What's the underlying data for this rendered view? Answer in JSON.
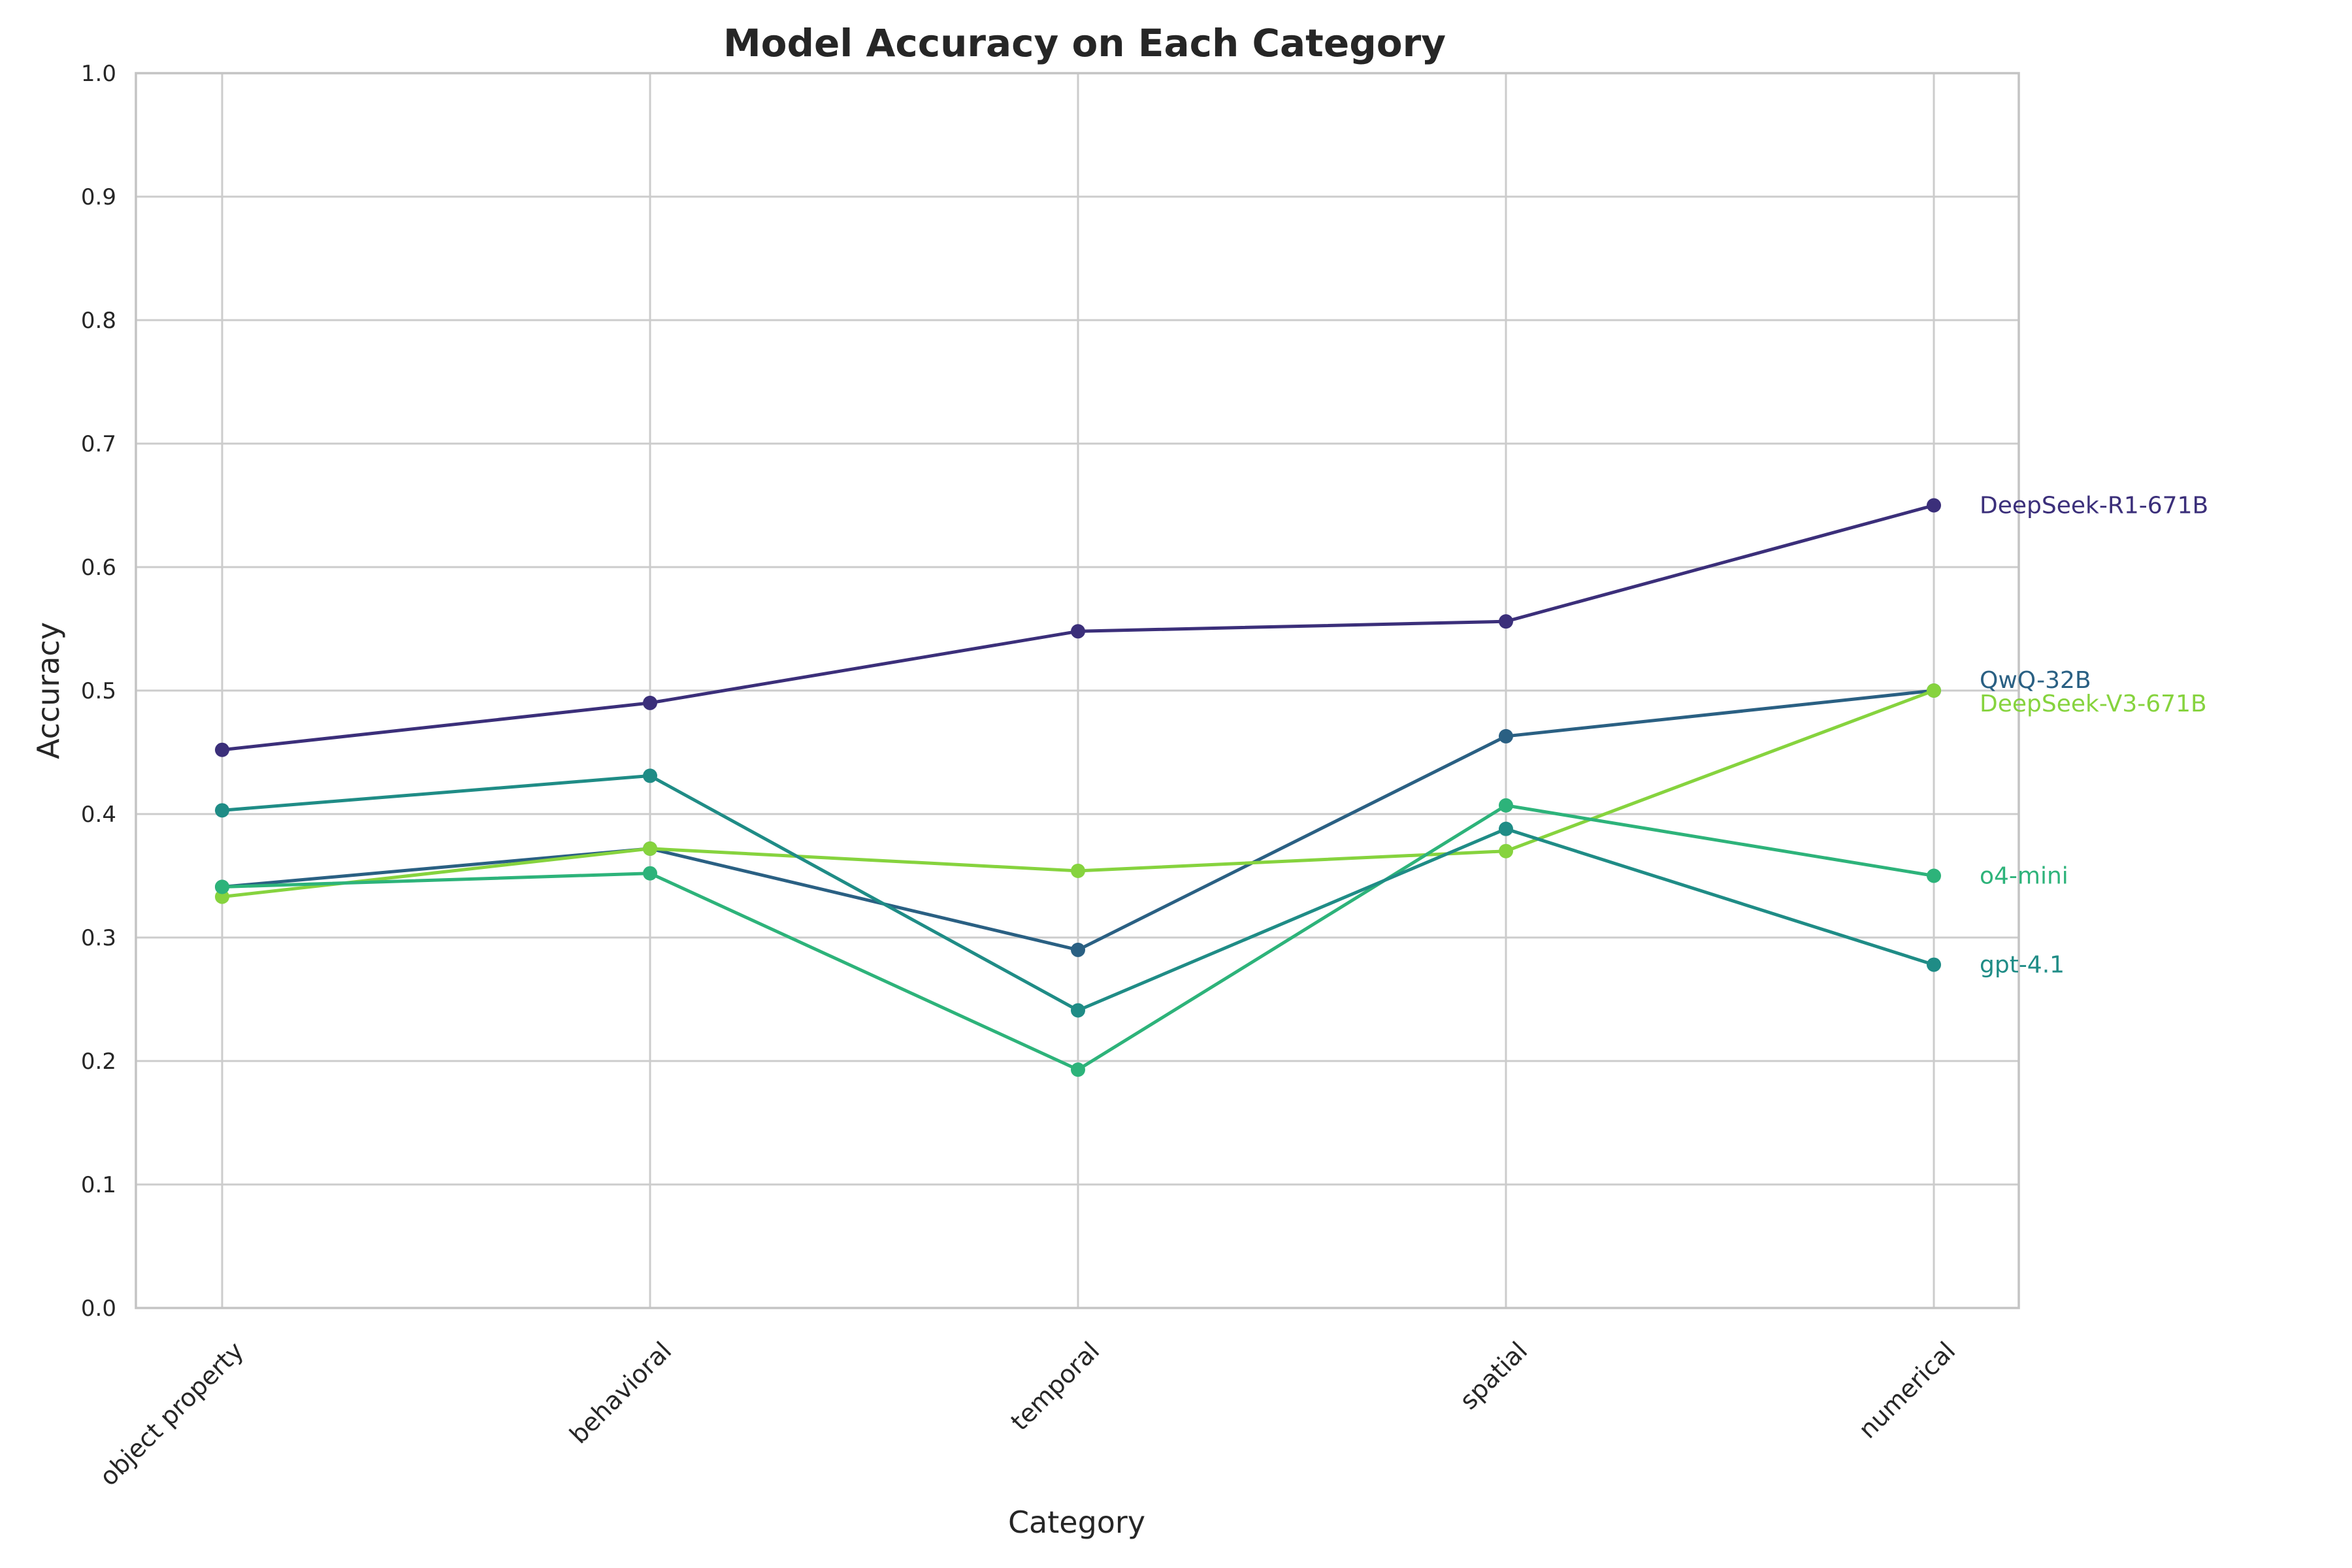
{
  "chart_data": {
    "type": "line",
    "title": "Model Accuracy on Each Category",
    "xlabel": "Category",
    "ylabel": "Accuracy",
    "ylim": [
      0,
      1
    ],
    "yticks": [
      "0.0",
      "0.1",
      "0.2",
      "0.3",
      "0.4",
      "0.5",
      "0.6",
      "0.7",
      "0.8",
      "0.9",
      "1.0"
    ],
    "grid": true,
    "legend": "direct labels at right end of each line",
    "categories": [
      "object property",
      "behavioral",
      "temporal",
      "spatial",
      "numerical"
    ],
    "series": [
      {
        "name": "DeepSeek-R1-671B",
        "color": "#3b2f7a",
        "values": [
          0.452,
          0.49,
          0.548,
          0.556,
          0.65
        ]
      },
      {
        "name": "QwQ-32B",
        "color": "#2a6083",
        "values": [
          0.341,
          0.372,
          0.29,
          0.463,
          0.5
        ]
      },
      {
        "name": "DeepSeek-V3-671B",
        "color": "#86d33e",
        "values": [
          0.333,
          0.372,
          0.354,
          0.37,
          0.5
        ]
      },
      {
        "name": "o4-mini",
        "color": "#2db37a",
        "values": [
          0.341,
          0.352,
          0.193,
          0.407,
          0.35
        ]
      },
      {
        "name": "gpt-4.1",
        "color": "#1f8c86",
        "values": [
          0.403,
          0.431,
          0.241,
          0.388,
          0.278
        ]
      }
    ]
  }
}
